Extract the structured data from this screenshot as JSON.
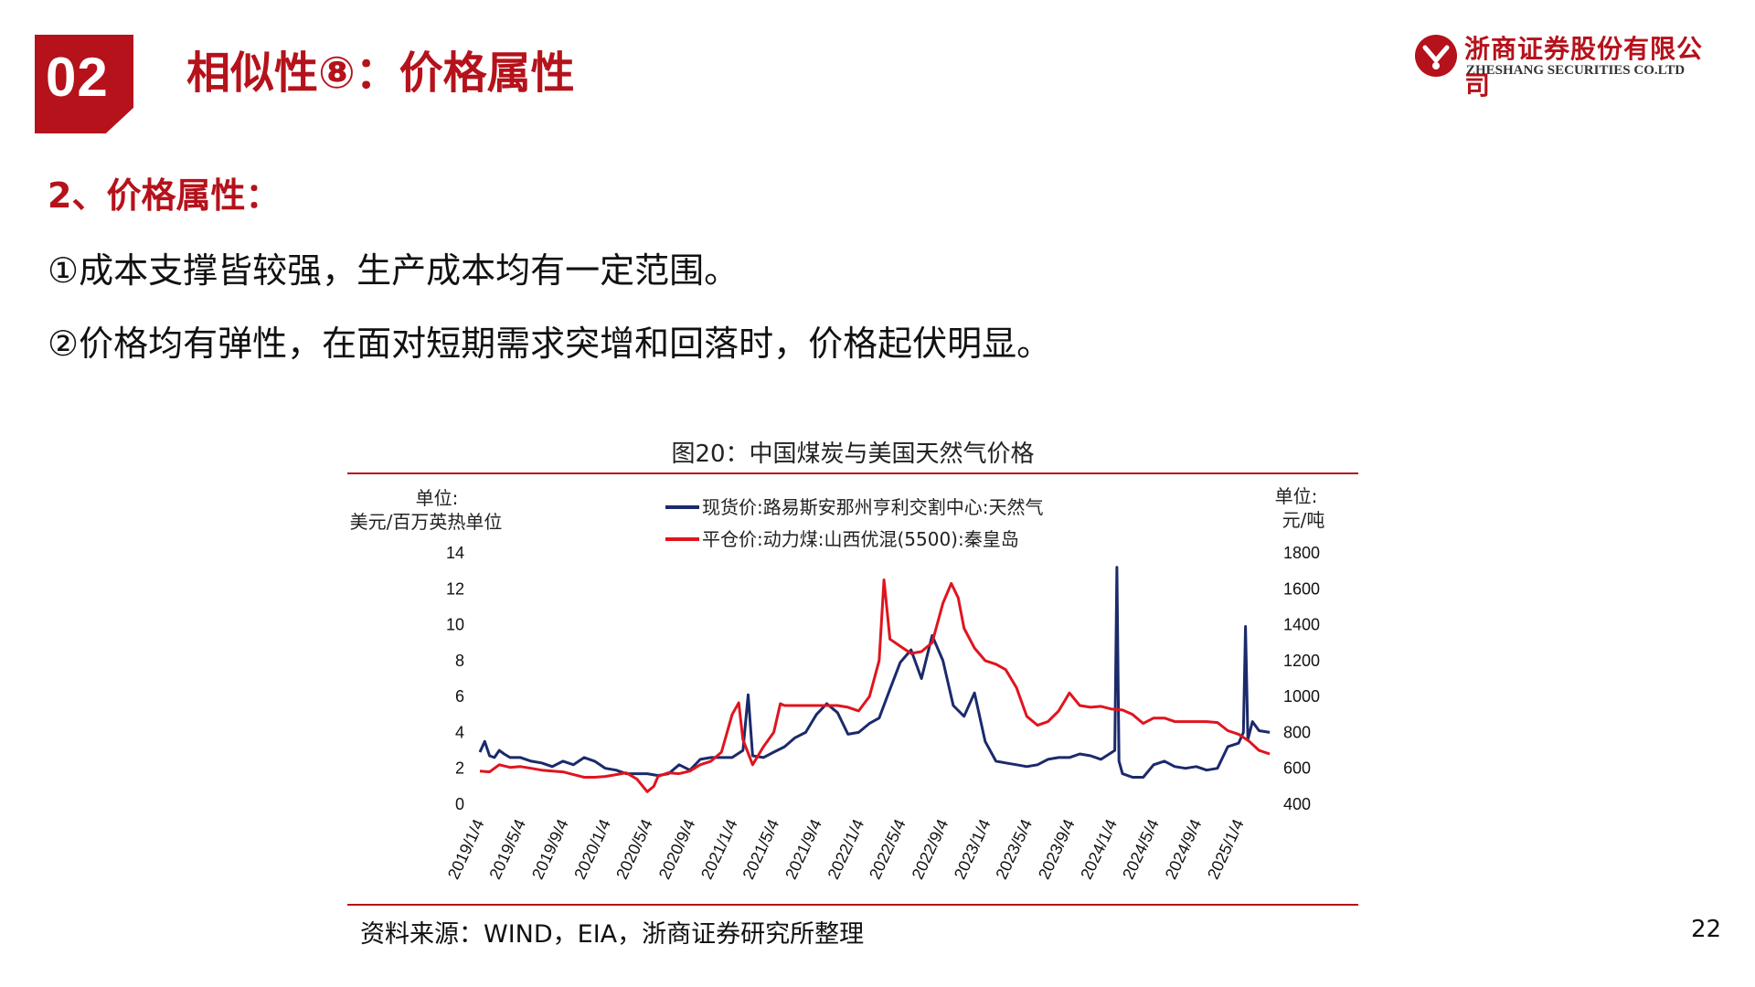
{
  "header": {
    "section_number": "02",
    "title": "相似性⑧：价格属性",
    "logo_cn": "浙商证券股份有限公司",
    "logo_en": "ZHESHANG SECURITIES CO.LTD"
  },
  "body": {
    "heading": "2、价格属性：",
    "point1": "①成本支撑皆较强，生产成本均有一定范围。",
    "point2": "②价格均有弹性，在面对短期需求突增和回落时，价格起伏明显。"
  },
  "figure": {
    "caption": "图20：中国煤炭与美国天然气价格",
    "source": "资料来源：WIND，EIA，浙商证券研究所整理"
  },
  "page_number": "22",
  "colors": {
    "brand_red": "#b5121b",
    "navy": "#1b2a6b",
    "red_line": "#e0141e"
  },
  "chart_data": {
    "type": "line",
    "ylabel_left_1": "单位:",
    "ylabel_left_2": "美元/百万英热单位",
    "ylabel_right_1": "单位:",
    "ylabel_right_2": "元/吨",
    "ylim_left": [
      0,
      14
    ],
    "ylim_right": [
      400,
      1800
    ],
    "yticks_left": [
      "0",
      "2",
      "4",
      "6",
      "8",
      "10",
      "12",
      "14"
    ],
    "yticks_right": [
      "400",
      "600",
      "800",
      "1000",
      "1200",
      "1400",
      "1600",
      "1800"
    ],
    "xticks": [
      "2019/1/4",
      "2019/5/4",
      "2019/9/4",
      "2020/1/4",
      "2020/5/4",
      "2020/9/4",
      "2021/1/4",
      "2021/5/4",
      "2021/9/4",
      "2022/1/4",
      "2022/5/4",
      "2022/9/4",
      "2023/1/4",
      "2023/5/4",
      "2023/9/4",
      "2024/1/4",
      "2024/5/4",
      "2024/9/4",
      "2025/1/4"
    ],
    "legend_position": "top-center",
    "grid": false,
    "series": [
      {
        "name": "现货价:路易斯安那州亨利交割中心:天然气",
        "axis": "left",
        "color": "#1b2a6b",
        "points": [
          [
            "2019/1/4",
            2.9
          ],
          [
            "2019/1/18",
            3.5
          ],
          [
            "2019/2/1",
            2.7
          ],
          [
            "2019/2/15",
            2.6
          ],
          [
            "2019/3/1",
            3.0
          ],
          [
            "2019/3/15",
            2.8
          ],
          [
            "2019/4/1",
            2.6
          ],
          [
            "2019/5/1",
            2.6
          ],
          [
            "2019/6/1",
            2.4
          ],
          [
            "2019/7/1",
            2.3
          ],
          [
            "2019/8/1",
            2.1
          ],
          [
            "2019/9/1",
            2.4
          ],
          [
            "2019/10/1",
            2.2
          ],
          [
            "2019/11/1",
            2.6
          ],
          [
            "2019/12/1",
            2.4
          ],
          [
            "2020/1/1",
            2.0
          ],
          [
            "2020/2/1",
            1.9
          ],
          [
            "2020/3/1",
            1.7
          ],
          [
            "2020/4/1",
            1.7
          ],
          [
            "2020/5/1",
            1.7
          ],
          [
            "2020/6/1",
            1.6
          ],
          [
            "2020/7/1",
            1.7
          ],
          [
            "2020/8/1",
            2.2
          ],
          [
            "2020/9/1",
            1.9
          ],
          [
            "2020/10/1",
            2.5
          ],
          [
            "2020/11/1",
            2.6
          ],
          [
            "2020/12/1",
            2.6
          ],
          [
            "2021/1/1",
            2.6
          ],
          [
            "2021/2/1",
            3.0
          ],
          [
            "2021/2/16",
            6.1
          ],
          [
            "2021/3/1",
            2.7
          ],
          [
            "2021/4/1",
            2.6
          ],
          [
            "2021/5/1",
            2.9
          ],
          [
            "2021/6/1",
            3.2
          ],
          [
            "2021/7/1",
            3.7
          ],
          [
            "2021/8/1",
            4.0
          ],
          [
            "2021/9/1",
            5.0
          ],
          [
            "2021/10/1",
            5.6
          ],
          [
            "2021/11/1",
            5.1
          ],
          [
            "2021/12/1",
            3.9
          ],
          [
            "2022/1/1",
            4.0
          ],
          [
            "2022/2/1",
            4.5
          ],
          [
            "2022/3/1",
            4.8
          ],
          [
            "2022/4/1",
            6.4
          ],
          [
            "2022/5/1",
            7.9
          ],
          [
            "2022/6/1",
            8.6
          ],
          [
            "2022/7/1",
            7.0
          ],
          [
            "2022/8/1",
            9.4
          ],
          [
            "2022/9/1",
            8.0
          ],
          [
            "2022/10/1",
            5.5
          ],
          [
            "2022/11/1",
            4.9
          ],
          [
            "2022/12/1",
            6.2
          ],
          [
            "2023/1/1",
            3.5
          ],
          [
            "2023/2/1",
            2.4
          ],
          [
            "2023/3/1",
            2.3
          ],
          [
            "2023/4/1",
            2.2
          ],
          [
            "2023/5/1",
            2.1
          ],
          [
            "2023/6/1",
            2.2
          ],
          [
            "2023/7/1",
            2.5
          ],
          [
            "2023/8/1",
            2.6
          ],
          [
            "2023/9/1",
            2.6
          ],
          [
            "2023/10/1",
            2.8
          ],
          [
            "2023/11/1",
            2.7
          ],
          [
            "2023/12/1",
            2.5
          ],
          [
            "2024/1/10",
            3.0
          ],
          [
            "2024/1/16",
            13.2
          ],
          [
            "2024/1/22",
            2.4
          ],
          [
            "2024/2/1",
            1.7
          ],
          [
            "2024/3/1",
            1.5
          ],
          [
            "2024/4/1",
            1.5
          ],
          [
            "2024/5/1",
            2.2
          ],
          [
            "2024/6/1",
            2.4
          ],
          [
            "2024/7/1",
            2.1
          ],
          [
            "2024/8/1",
            2.0
          ],
          [
            "2024/9/1",
            2.1
          ],
          [
            "2024/10/1",
            1.9
          ],
          [
            "2024/11/1",
            2.0
          ],
          [
            "2024/12/1",
            3.2
          ],
          [
            "2025/1/1",
            3.4
          ],
          [
            "2025/1/15",
            4.0
          ],
          [
            "2025/1/21",
            9.9
          ],
          [
            "2025/1/28",
            3.6
          ],
          [
            "2025/2/10",
            4.6
          ],
          [
            "2025/3/1",
            4.1
          ],
          [
            "2025/4/1",
            4.0
          ]
        ]
      },
      {
        "name": "平仓价:动力煤:山西优混(5500):秦皇岛",
        "axis": "right",
        "color": "#e0141e",
        "points": [
          [
            "2019/1/4",
            585
          ],
          [
            "2019/2/1",
            580
          ],
          [
            "2019/3/1",
            620
          ],
          [
            "2019/4/1",
            605
          ],
          [
            "2019/5/1",
            610
          ],
          [
            "2019/6/1",
            600
          ],
          [
            "2019/7/1",
            590
          ],
          [
            "2019/8/1",
            585
          ],
          [
            "2019/9/1",
            580
          ],
          [
            "2019/10/1",
            565
          ],
          [
            "2019/11/1",
            550
          ],
          [
            "2019/12/1",
            550
          ],
          [
            "2020/1/1",
            555
          ],
          [
            "2020/2/1",
            565
          ],
          [
            "2020/3/1",
            575
          ],
          [
            "2020/4/1",
            540
          ],
          [
            "2020/5/1",
            470
          ],
          [
            "2020/5/20",
            500
          ],
          [
            "2020/6/1",
            555
          ],
          [
            "2020/7/1",
            575
          ],
          [
            "2020/8/1",
            570
          ],
          [
            "2020/9/1",
            585
          ],
          [
            "2020/10/1",
            620
          ],
          [
            "2020/11/1",
            640
          ],
          [
            "2020/12/1",
            690
          ],
          [
            "2021/1/1",
            900
          ],
          [
            "2021/1/20",
            965
          ],
          [
            "2021/2/1",
            760
          ],
          [
            "2021/3/1",
            620
          ],
          [
            "2021/4/1",
            720
          ],
          [
            "2021/5/1",
            800
          ],
          [
            "2021/5/20",
            960
          ],
          [
            "2021/6/1",
            950
          ],
          [
            "2021/7/1",
            950
          ],
          [
            "2021/8/1",
            950
          ],
          [
            "2021/9/1",
            950
          ],
          [
            "2021/10/1",
            950
          ],
          [
            "2021/11/1",
            950
          ],
          [
            "2021/12/1",
            940
          ],
          [
            "2022/1/1",
            920
          ],
          [
            "2022/2/1",
            1000
          ],
          [
            "2022/3/1",
            1200
          ],
          [
            "2022/3/15",
            1650
          ],
          [
            "2022/4/1",
            1320
          ],
          [
            "2022/5/1",
            1280
          ],
          [
            "2022/6/1",
            1240
          ],
          [
            "2022/7/1",
            1250
          ],
          [
            "2022/8/1",
            1300
          ],
          [
            "2022/9/1",
            1520
          ],
          [
            "2022/9/25",
            1630
          ],
          [
            "2022/10/15",
            1550
          ],
          [
            "2022/11/1",
            1380
          ],
          [
            "2022/12/1",
            1270
          ],
          [
            "2023/1/1",
            1200
          ],
          [
            "2023/2/1",
            1180
          ],
          [
            "2023/3/1",
            1150
          ],
          [
            "2023/4/1",
            1050
          ],
          [
            "2023/5/1",
            890
          ],
          [
            "2023/6/1",
            840
          ],
          [
            "2023/7/1",
            860
          ],
          [
            "2023/8/1",
            920
          ],
          [
            "2023/9/1",
            1020
          ],
          [
            "2023/10/1",
            950
          ],
          [
            "2023/11/1",
            940
          ],
          [
            "2023/12/1",
            945
          ],
          [
            "2024/1/1",
            930
          ],
          [
            "2024/2/1",
            925
          ],
          [
            "2024/3/1",
            900
          ],
          [
            "2024/4/1",
            850
          ],
          [
            "2024/5/1",
            880
          ],
          [
            "2024/6/1",
            880
          ],
          [
            "2024/7/1",
            860
          ],
          [
            "2024/8/1",
            860
          ],
          [
            "2024/9/1",
            860
          ],
          [
            "2024/10/1",
            860
          ],
          [
            "2024/11/1",
            855
          ],
          [
            "2024/12/1",
            810
          ],
          [
            "2025/1/1",
            790
          ],
          [
            "2025/2/1",
            750
          ],
          [
            "2025/3/1",
            700
          ],
          [
            "2025/4/1",
            680
          ]
        ]
      }
    ]
  }
}
